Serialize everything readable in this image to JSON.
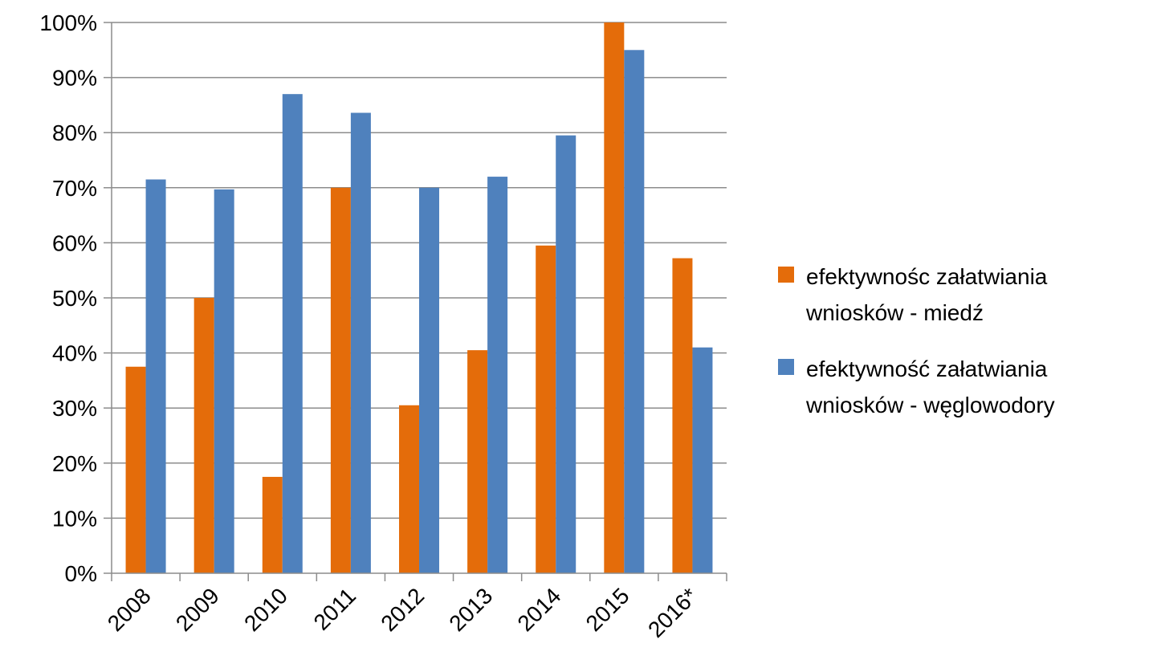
{
  "chart_data": {
    "type": "bar",
    "categories": [
      "2008",
      "2009",
      "2010",
      "2011",
      "2012",
      "2013",
      "2014",
      "2015",
      "2016*"
    ],
    "series": [
      {
        "name": "efektywnośc załatwiania wniosków - miedź",
        "name_lines": [
          "efektywnośc załatwiania",
          "wniosków - miedź"
        ],
        "color": "#E46C0A",
        "values": [
          0.375,
          0.5,
          0.175,
          0.7,
          0.305,
          0.405,
          0.595,
          1.0,
          0.572
        ]
      },
      {
        "name": "efektywność załatwiania wniosków - węglowodory",
        "name_lines": [
          "efektywność załatwiania",
          "wniosków - węglowodory"
        ],
        "color": "#4F81BD",
        "values": [
          0.715,
          0.697,
          0.87,
          0.836,
          0.7,
          0.72,
          0.795,
          0.95,
          0.41
        ]
      }
    ],
    "ylim": [
      0,
      1
    ],
    "y_ticks": [
      "0%",
      "10%",
      "20%",
      "30%",
      "40%",
      "50%",
      "60%",
      "70%",
      "80%",
      "90%",
      "100%"
    ],
    "grid": true,
    "legend_position": "right",
    "title": "",
    "xlabel": "",
    "ylabel": ""
  }
}
